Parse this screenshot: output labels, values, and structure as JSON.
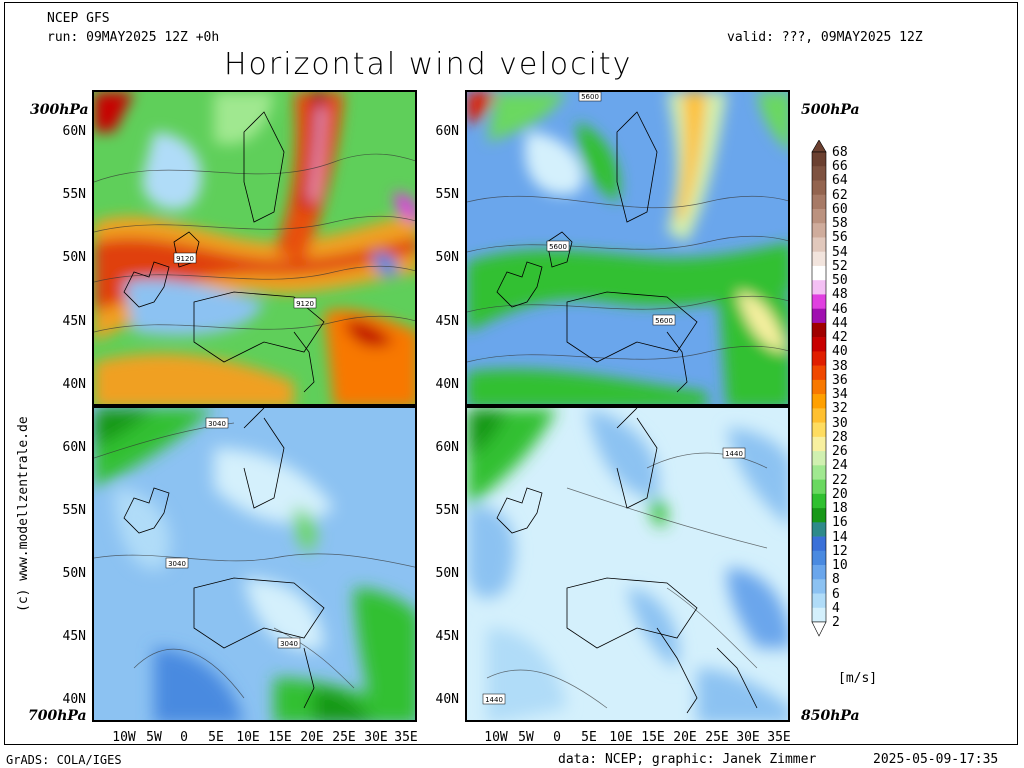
{
  "header": {
    "model": "NCEP GFS",
    "run": "run: 09MAY2025 12Z +0h",
    "valid": "valid: ???, 09MAY2025 12Z",
    "title": "Horizontal wind velocity"
  },
  "panels": [
    {
      "level": "300hPa",
      "labels": [
        "9120",
        "9120"
      ]
    },
    {
      "level": "500hPa",
      "labels": [
        "5600",
        "5600",
        "5600"
      ]
    },
    {
      "level": "700hPa",
      "labels": [
        "3040",
        "3040",
        "3040"
      ]
    },
    {
      "level": "850hPa",
      "labels": [
        "1440",
        "1440"
      ]
    }
  ],
  "axes": {
    "lat_labels": [
      "60N",
      "55N",
      "50N",
      "45N",
      "40N"
    ],
    "lon_labels": [
      "10W",
      "5W",
      "0",
      "5E",
      "10E",
      "15E",
      "20E",
      "25E",
      "30E",
      "35E"
    ]
  },
  "colorbar": {
    "unit": "[m/s]",
    "labels": [
      "68",
      "66",
      "64",
      "62",
      "60",
      "58",
      "56",
      "54",
      "52",
      "50",
      "48",
      "46",
      "44",
      "42",
      "40",
      "38",
      "36",
      "34",
      "32",
      "30",
      "28",
      "26",
      "24",
      "22",
      "20",
      "18",
      "16",
      "14",
      "12",
      "10",
      "8",
      "6",
      "4",
      "2"
    ],
    "colors": [
      "#6b4030",
      "#7e5240",
      "#93644f",
      "#a77a66",
      "#bb927f",
      "#cfac9c",
      "#e1c8bc",
      "#f2e4dd",
      "#ffffff",
      "#f4c0f4",
      "#e040e0",
      "#a010b0",
      "#a00000",
      "#c80000",
      "#e01e00",
      "#f04800",
      "#f87800",
      "#ffa000",
      "#ffc030",
      "#fedc60",
      "#f8f0a0",
      "#d0f0b0",
      "#a0e890",
      "#6ad860",
      "#30c030",
      "#189818",
      "#2e8a8a",
      "#3a70d8",
      "#4a8ae0",
      "#6aa6ec",
      "#8cc2f2",
      "#b0dcf8",
      "#d4f0fc"
    ]
  },
  "footer": {
    "left": "GrADS: COLA/IGES",
    "middle": "data: NCEP; graphic: Janek Zimmer",
    "right": "2025-05-09-17:35"
  },
  "credit": "(c) www.modellzentrale.de"
}
